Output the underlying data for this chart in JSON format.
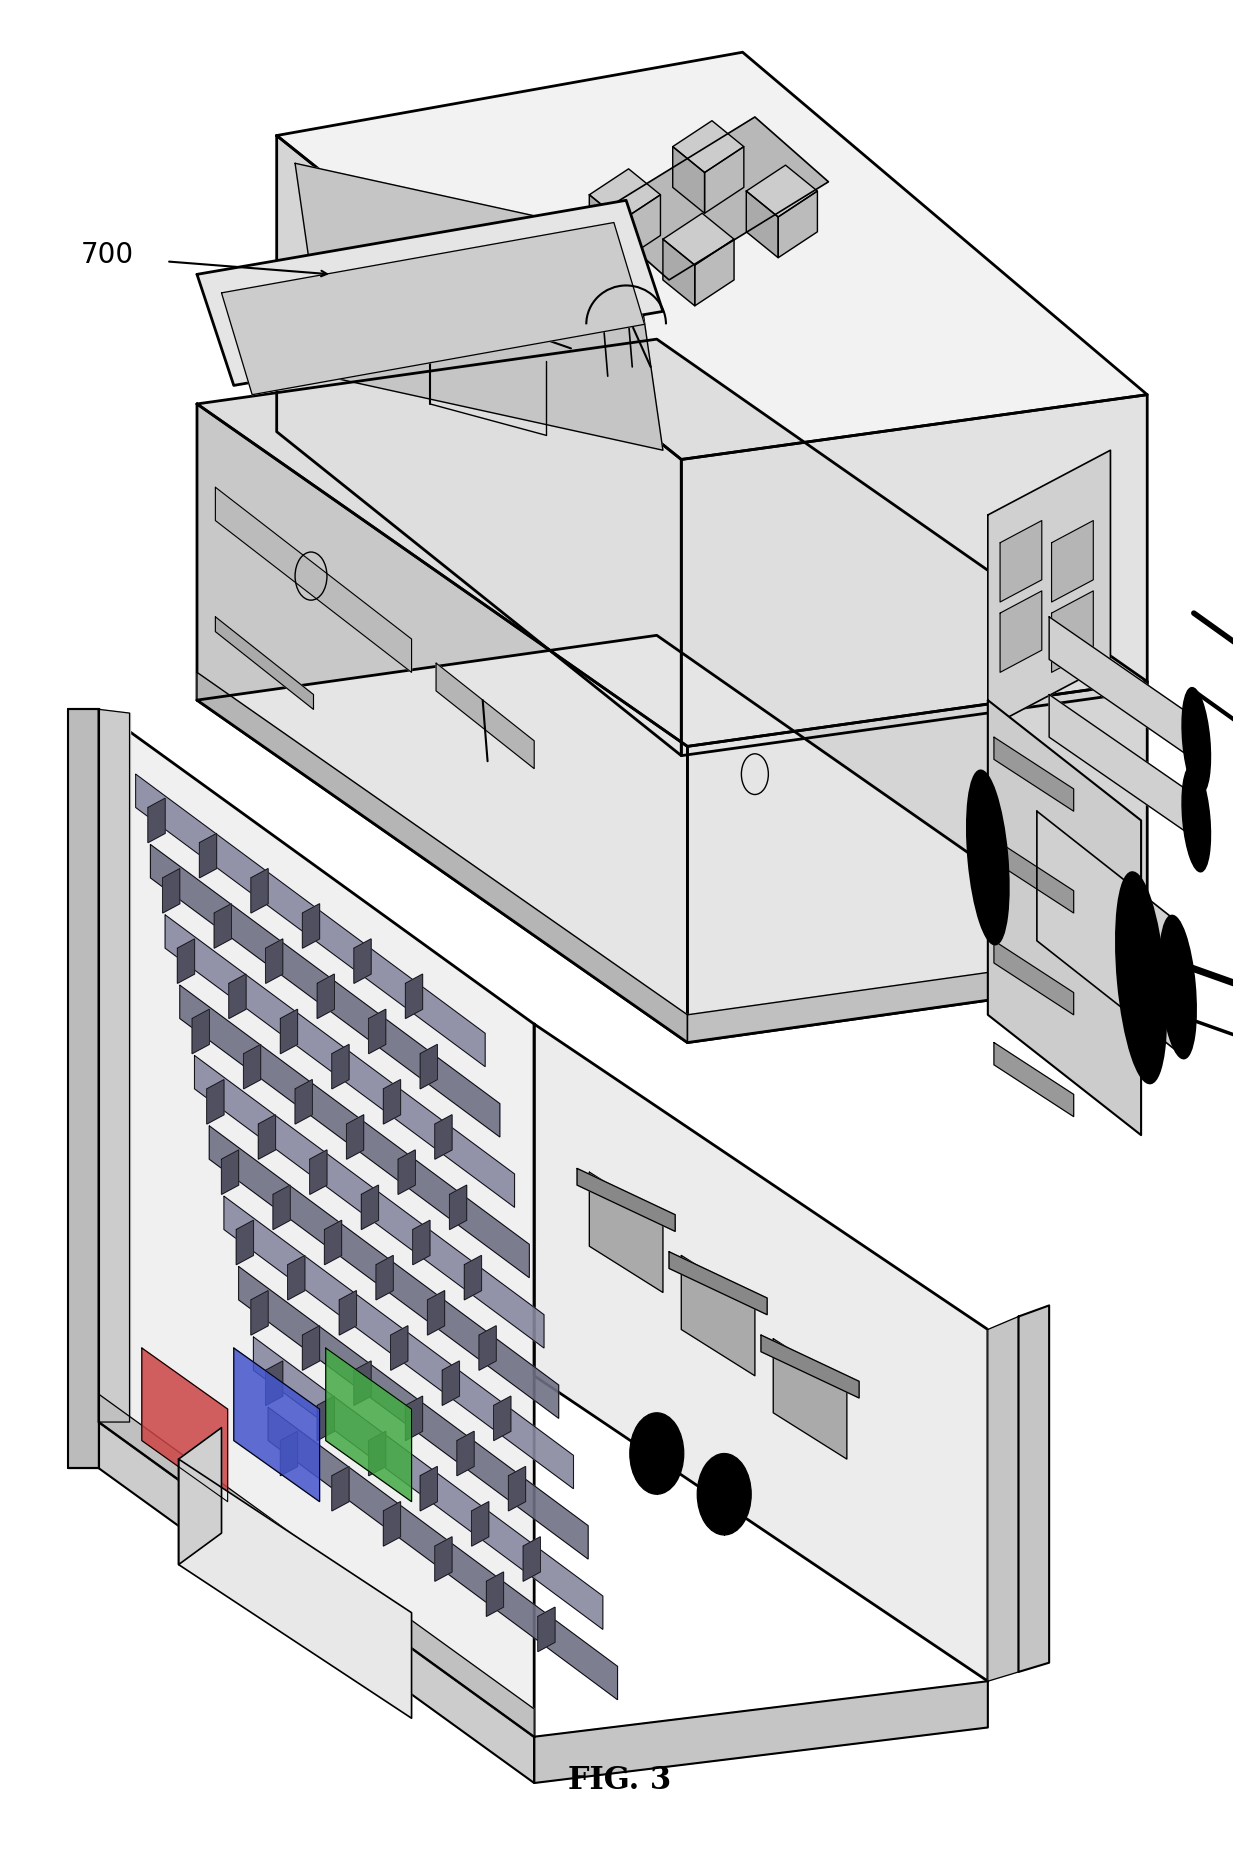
{
  "title": "FIG. 3",
  "label_text": "700",
  "title_fontsize": 22,
  "label_fontsize": 20,
  "background_color": "#ffffff",
  "line_color": "#000000",
  "figure_width": 12.4,
  "figure_height": 18.65
}
